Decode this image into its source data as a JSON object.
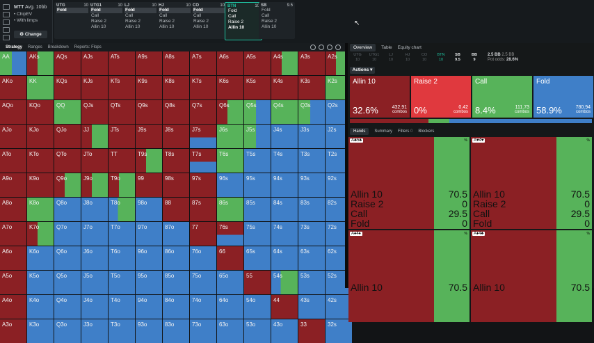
{
  "left_panel": {
    "title": "MTT",
    "subtitle": "Avg. 10bb",
    "opt1": "ChipEV",
    "opt2": "With limps",
    "change_label": "Change"
  },
  "positions": [
    {
      "name": "UTG",
      "stack": "10",
      "actions": [
        "Fold"
      ],
      "selected": 0
    },
    {
      "name": "UTG1",
      "stack": "10",
      "actions": [
        "Fold",
        "Call",
        "Raise 2",
        "Allin 10"
      ],
      "selected": 0
    },
    {
      "name": "LJ",
      "stack": "10",
      "actions": [
        "Fold",
        "Call",
        "Raise 2",
        "Allin 10"
      ],
      "selected": 0
    },
    {
      "name": "HJ",
      "stack": "10",
      "actions": [
        "Fold",
        "Call",
        "Raise 2",
        "Allin 10"
      ],
      "selected": 0
    },
    {
      "name": "CO",
      "stack": "10",
      "actions": [
        "Fold",
        "Call",
        "Raise 2",
        "Allin 10"
      ],
      "selected": 0
    },
    {
      "name": "BTN",
      "stack": "10",
      "actions": [
        "Fold",
        "Call",
        "Raise 2",
        "Allin 10"
      ],
      "selected": -1
    },
    {
      "name": "SB",
      "stack": "9.5",
      "actions": [
        "Fold",
        "Call",
        "Raise 2",
        "Allin 10"
      ],
      "selected": -1
    }
  ],
  "left_tabs": [
    "Strategy",
    "Ranges",
    "Breakdown",
    "Reports: Flops"
  ],
  "grid": {
    "rows": [
      [
        "AA",
        "AKs",
        "AQs",
        "AJs",
        "ATs",
        "A9s",
        "A8s",
        "A7s",
        "A6s",
        "A5s",
        "A4s",
        "A3s",
        "A2s"
      ],
      [
        "AKo",
        "KK",
        "KQs",
        "KJs",
        "KTs",
        "K9s",
        "K8s",
        "K7s",
        "K6s",
        "K5s",
        "K4s",
        "K3s",
        "K2s"
      ],
      [
        "AQo",
        "KQo",
        "QQ",
        "QJs",
        "QTs",
        "Q9s",
        "Q8s",
        "Q7s",
        "Q6s",
        "Q5s",
        "Q4s",
        "Q3s",
        "Q2s"
      ],
      [
        "AJo",
        "KJo",
        "QJo",
        "JJ",
        "JTs",
        "J9s",
        "J8s",
        "J7s",
        "J6s",
        "J5s",
        "J4s",
        "J3s",
        "J2s"
      ],
      [
        "ATo",
        "KTo",
        "QTo",
        "JTo",
        "TT",
        "T9s",
        "T8s",
        "T7s",
        "T6s",
        "T5s",
        "T4s",
        "T3s",
        "T2s"
      ],
      [
        "A9o",
        "K9o",
        "Q9o",
        "J9o",
        "T9o",
        "99",
        "98s",
        "97s",
        "96s",
        "95s",
        "94s",
        "93s",
        "92s"
      ],
      [
        "A8o",
        "K8o",
        "Q8o",
        "J8o",
        "T8o",
        "98o",
        "88",
        "87s",
        "86s",
        "85s",
        "84s",
        "83s",
        "82s"
      ],
      [
        "A7o",
        "K7o",
        "Q7o",
        "J7o",
        "T7o",
        "97o",
        "87o",
        "77",
        "76s",
        "75s",
        "74s",
        "73s",
        "72s"
      ],
      [
        "A6o",
        "K6o",
        "Q6o",
        "J6o",
        "T6o",
        "96o",
        "86o",
        "76o",
        "66",
        "65s",
        "64s",
        "63s",
        "62s"
      ],
      [
        "A5o",
        "K5o",
        "Q5o",
        "J5o",
        "T5o",
        "95o",
        "85o",
        "75o",
        "65o",
        "55",
        "54s",
        "53s",
        "52s"
      ],
      [
        "A4o",
        "K4o",
        "Q4o",
        "J4o",
        "T4o",
        "94o",
        "84o",
        "74o",
        "64o",
        "54o",
        "44",
        "43s",
        "42s"
      ],
      [
        "A3o",
        "K3o",
        "Q3o",
        "J3o",
        "T3o",
        "93o",
        "83o",
        "73o",
        "63o",
        "53o",
        "43o",
        "33",
        "32s"
      ]
    ],
    "colors": [
      [
        "gb",
        "rg",
        "r",
        "r",
        "r",
        "r",
        "r",
        "r",
        "r",
        "r",
        "rg",
        "r",
        "rg"
      ],
      [
        "r",
        "g",
        "r",
        "r",
        "r",
        "r",
        "r",
        "r",
        "r",
        "r",
        "r",
        "r",
        "g"
      ],
      [
        "r",
        "r",
        "g",
        "r",
        "r",
        "r",
        "r",
        "r",
        "rg",
        "gb",
        "g",
        "gb",
        "b"
      ],
      [
        "r",
        "r",
        "r",
        "rg",
        "r",
        "r",
        "r",
        "rb",
        "g",
        "gb",
        "b",
        "b",
        "b"
      ],
      [
        "r",
        "r",
        "r",
        "r",
        "r",
        "rg",
        "r",
        "rb",
        "g",
        "b",
        "b",
        "b",
        "b"
      ],
      [
        "r",
        "r",
        "rg",
        "rg",
        "rg",
        "r",
        "r",
        "r",
        "b",
        "b",
        "b",
        "b",
        "b"
      ],
      [
        "r",
        "g",
        "b",
        "b",
        "bg",
        "b",
        "r",
        "r",
        "g",
        "b",
        "b",
        "b",
        "b"
      ],
      [
        "r",
        "rg",
        "b",
        "b",
        "b",
        "b",
        "b",
        "r",
        "rb",
        "b",
        "b",
        "b",
        "b"
      ],
      [
        "r",
        "b",
        "b",
        "b",
        "b",
        "b",
        "b",
        "b",
        "r",
        "b",
        "b",
        "b",
        "b"
      ],
      [
        "r",
        "b",
        "b",
        "b",
        "b",
        "b",
        "b",
        "b",
        "b",
        "r",
        "bg",
        "b",
        "b"
      ],
      [
        "r",
        "b",
        "b",
        "b",
        "b",
        "b",
        "b",
        "b",
        "b",
        "b",
        "r",
        "b",
        "b"
      ],
      [
        "r",
        "b",
        "b",
        "b",
        "b",
        "b",
        "b",
        "b",
        "b",
        "b",
        "b",
        "r",
        "b"
      ]
    ]
  },
  "right_tabs": [
    "Overview",
    "Table",
    "Equity chart"
  ],
  "seats": [
    {
      "name": "UTG",
      "stack": "10",
      "state": "dim"
    },
    {
      "name": "UTG1",
      "stack": "10",
      "state": "dim"
    },
    {
      "name": "LJ",
      "stack": "10",
      "state": "dim"
    },
    {
      "name": "HJ",
      "stack": "10",
      "state": "dim"
    },
    {
      "name": "CO",
      "stack": "10",
      "state": "dim"
    },
    {
      "name": "BTN",
      "stack": "10",
      "state": "act"
    },
    {
      "name": "SB",
      "stack": "9.5",
      "state": "w"
    },
    {
      "name": "BB",
      "stack": "9",
      "state": "w"
    }
  ],
  "pot": {
    "line1": "2.5 BB",
    "line2": "2.5 BB",
    "odds_label": "Pot odds:",
    "odds": "28.6%"
  },
  "actions_label": "Actions",
  "actions": [
    {
      "label": "Allin 10",
      "pct": "32.6%",
      "combos": "432.91",
      "color": "#8b2024"
    },
    {
      "label": "Raise 2",
      "pct": "0%",
      "combos": "0.42",
      "color": "#e0393e"
    },
    {
      "label": "Call",
      "pct": "8.4%",
      "combos": "111.73",
      "color": "#57b35a"
    },
    {
      "label": "Fold",
      "pct": "58.9%",
      "combos": "780.94",
      "color": "#3f7fc8"
    }
  ],
  "combos_word": "combos",
  "hand_tabs": [
    "Hands",
    "Summary",
    "Filters",
    "Blockers"
  ],
  "filters_count": "0",
  "hands": [
    {
      "combo": "A♣5♣",
      "labels": [
        "Allin 10",
        "Raise 2",
        "Call",
        "Fold"
      ],
      "values": [
        "70.5",
        "0",
        "29.5",
        "0"
      ]
    },
    {
      "combo": "A♥4♥",
      "labels": [
        "Allin 10",
        "Raise 2",
        "Call",
        "Fold"
      ],
      "values": [
        "70.5",
        "0",
        "29.5",
        "0"
      ]
    },
    {
      "combo": "A♠4♠",
      "labels": [
        "Allin 10"
      ],
      "values": [
        "70.5"
      ]
    },
    {
      "combo": "A♦4♣",
      "labels": [
        "Allin 10"
      ],
      "values": [
        "70.5"
      ]
    }
  ]
}
